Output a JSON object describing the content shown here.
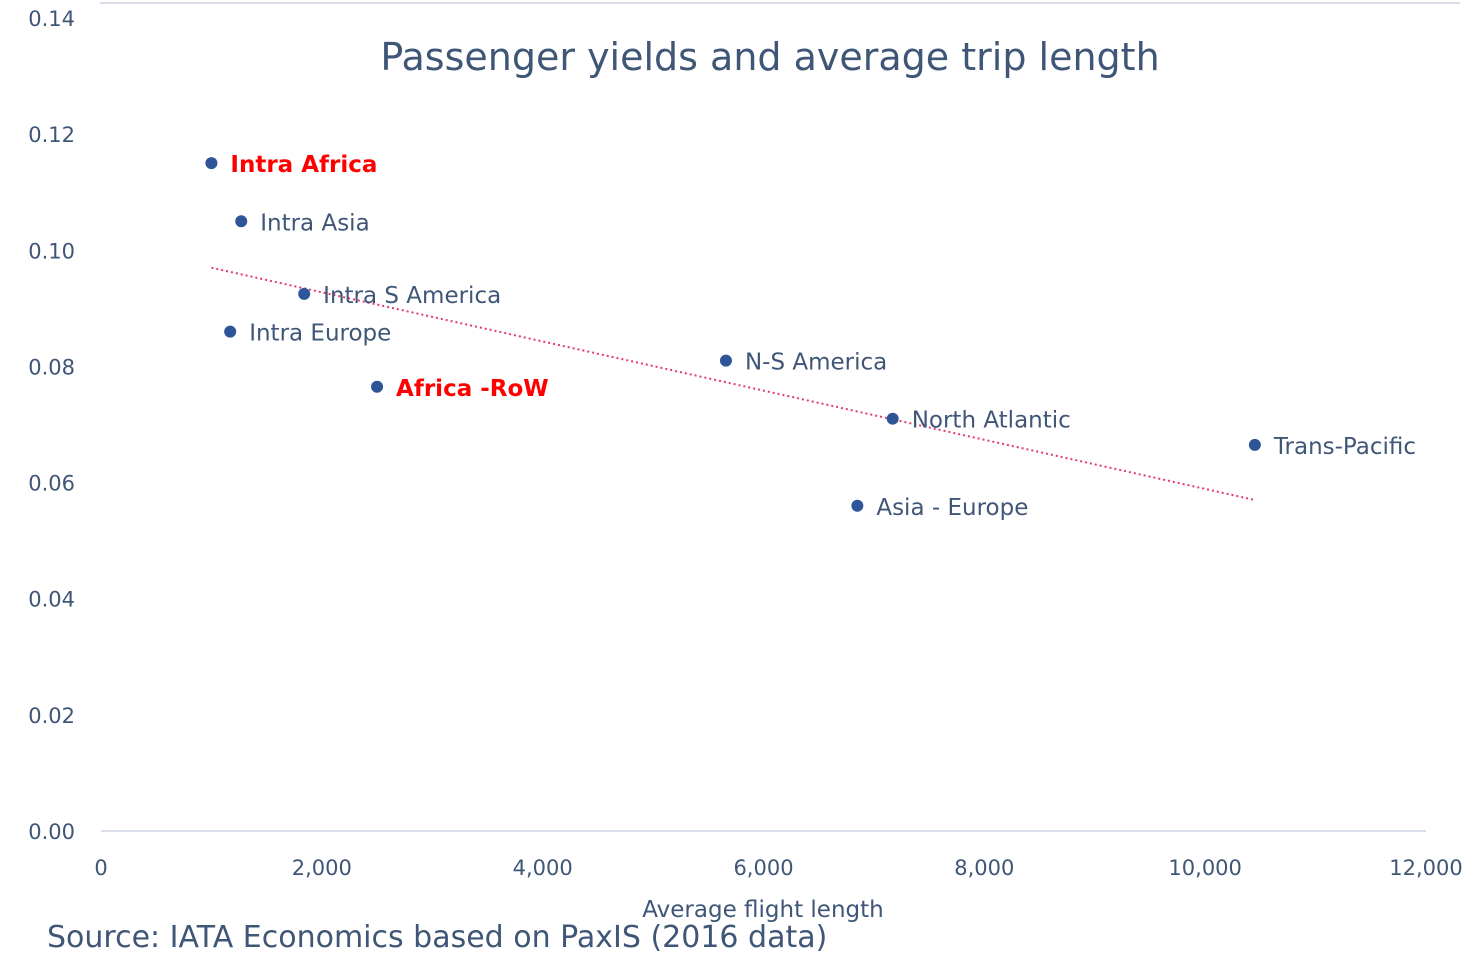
{
  "chart_data": {
    "type": "scatter",
    "title": "Passenger yields and average trip length",
    "xlabel": "Average flight length",
    "ylabel": "",
    "xlim": [
      0,
      12000
    ],
    "ylim": [
      0,
      0.14
    ],
    "x_ticks": [
      "0",
      "2,000",
      "4,000",
      "6,000",
      "8,000",
      "10,000",
      "12,000"
    ],
    "y_ticks": [
      "0.00",
      "0.02",
      "0.04",
      "0.06",
      "0.08",
      "0.10",
      "0.12",
      "0.14"
    ],
    "grid": false,
    "points": [
      {
        "label": "Intra Africa",
        "x": 1000,
        "y": 0.115,
        "highlight": true
      },
      {
        "label": "Intra Asia",
        "x": 1270,
        "y": 0.105,
        "highlight": false
      },
      {
        "label": "Intra S America",
        "x": 1840,
        "y": 0.0925,
        "highlight": false
      },
      {
        "label": "Intra Europe",
        "x": 1170,
        "y": 0.086,
        "highlight": false
      },
      {
        "label": "Africa -RoW",
        "x": 2500,
        "y": 0.0765,
        "highlight": true
      },
      {
        "label": "N-S America",
        "x": 5660,
        "y": 0.081,
        "highlight": false
      },
      {
        "label": "North Atlantic",
        "x": 7170,
        "y": 0.071,
        "highlight": false
      },
      {
        "label": "Asia - Europe",
        "x": 6850,
        "y": 0.056,
        "highlight": false
      },
      {
        "label": "Trans-Pacific",
        "x": 10450,
        "y": 0.0665,
        "highlight": false
      }
    ],
    "trendline": {
      "x": [
        1000,
        10450
      ],
      "y": [
        0.097,
        0.057
      ],
      "style": "dotted"
    },
    "colors": {
      "marker": "#2e5597",
      "label": "#3f5677",
      "highlight_label": "#ff0000",
      "trendline": "#e8386c",
      "axis": "#d9dee8",
      "tick_text": "#3f5677"
    }
  },
  "source": "Source: IATA Economics based on PaxIS (2016 data)"
}
